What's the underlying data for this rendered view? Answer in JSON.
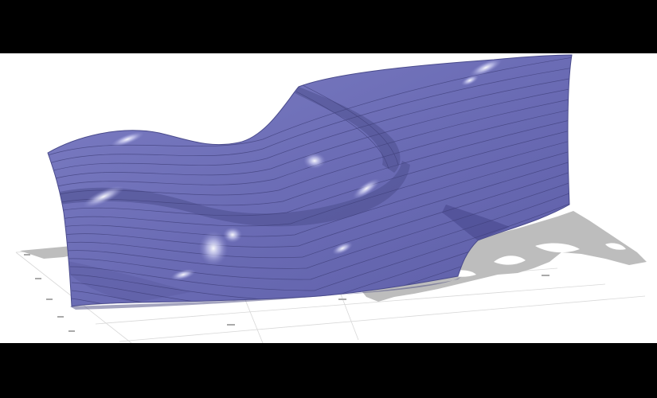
{
  "scene": {
    "type": "3d-surface-render",
    "surface_color": "#6e6fb8",
    "surface_highlight": "#e9eaff",
    "contour_line_color": "#3f3f7a",
    "land_color": "#bdbdbd",
    "sea_color": "#ffffff",
    "grid_color": "#d6d6d6",
    "background": "#ffffff",
    "letterbox_color": "#000000"
  }
}
